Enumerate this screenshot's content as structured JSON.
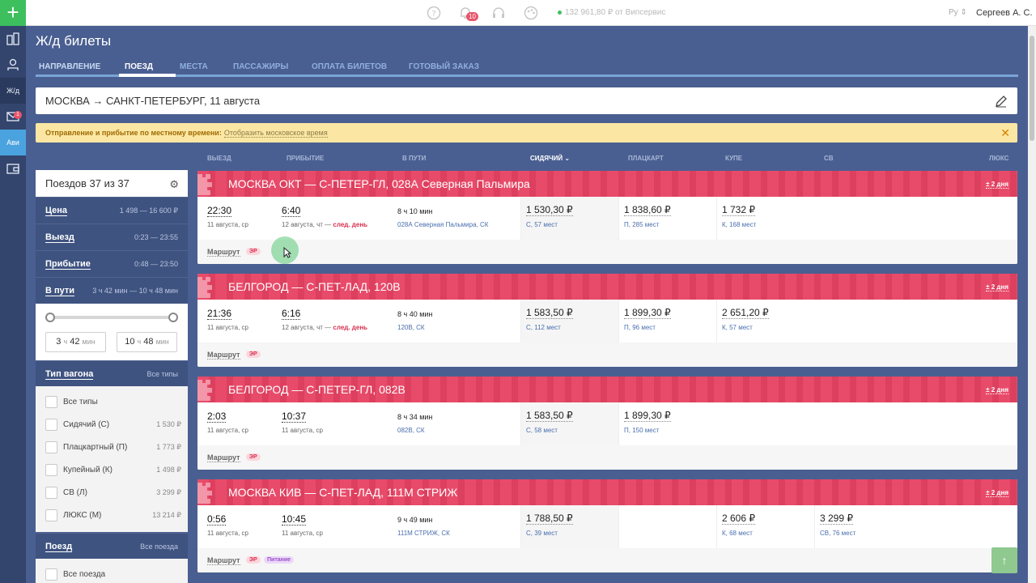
{
  "topbar": {
    "notifications_count": "10",
    "balance": "132 961,80 ₽ от Випсервис",
    "language": "Ру",
    "user": "Сергеев А. С."
  },
  "rail": {
    "rail_label": "Ж/д",
    "avia_label": "Ави",
    "mail_badge": "1"
  },
  "page": {
    "title": "Ж/д билеты",
    "tabs": [
      "НАПРАВЛЕНИЕ",
      "ПОЕЗД",
      "МЕСТА",
      "ПАССАЖИРЫ",
      "ОПЛАТА БИЛЕТОВ",
      "ГОТОВЫЙ ЗАКАЗ"
    ],
    "active_tab_index": 1,
    "route": "МОСКВА → САНКТ-ПЕТЕРБУРГ, 11 августа",
    "notice_text": "Отправление и прибытие по местному времени:",
    "notice_link": "Отобразить московское время"
  },
  "columns": {
    "depart": "ВЫЕЗД",
    "arrive": "ПРИБЫТИЕ",
    "travel": "В ПУТИ",
    "sitting": "СИДЯЧИЙ ⌄",
    "platzkart": "ПЛАЦКАРТ",
    "kupe": "КУПЕ",
    "sv": "СВ",
    "lux": "ЛЮКС"
  },
  "sidebar": {
    "count_text": "Поездов 37 из 37",
    "filters": [
      {
        "label": "Цена",
        "value": "1 498 — 16 600 ₽"
      },
      {
        "label": "Выезд",
        "value": "0:23 — 23:55"
      },
      {
        "label": "Прибытие",
        "value": "0:48 — 23:50"
      },
      {
        "label": "В пути",
        "value": "3 ч 42 мин — 10 ч 48 мин"
      }
    ],
    "dur_min": {
      "h": "3",
      "m": "42"
    },
    "dur_max": {
      "h": "10",
      "m": "48"
    },
    "unit_h": "ч",
    "unit_m": "мин",
    "wagon_type_label": "Тип вагона",
    "wagon_type_all": "Все типы",
    "wagon_types": [
      {
        "label": "Все типы",
        "price": ""
      },
      {
        "label": "Сидячий (С)",
        "price": "1 530 ₽"
      },
      {
        "label": "Плацкартный (П)",
        "price": "1 773 ₽"
      },
      {
        "label": "Купейный (К)",
        "price": "1 498 ₽"
      },
      {
        "label": "СВ (Л)",
        "price": "3 299 ₽"
      },
      {
        "label": "ЛЮКС (М)",
        "price": "13 214 ₽"
      }
    ],
    "train_label": "Поезд",
    "train_all": "Все поезда",
    "train_first": "Все поезда"
  },
  "card_common": {
    "days": "± 2 дня",
    "route_link": "Маршрут",
    "er": "ЭР",
    "food": "Питание",
    "next_day": "след. день"
  },
  "trains": [
    {
      "name": "МОСКВА ОКТ — С-ПЕТЕР-ГЛ, 028А Северная Пальмира",
      "dep_time": "22:30",
      "dep_date": "11 августа, ср",
      "arr_time": "6:40",
      "arr_date": "12 августа, чт —",
      "travel": "8 ч 10 мин",
      "train_no": "028А Северная Пальмира, СК",
      "sitting_price": "1 530,30 ₽",
      "sitting_seats": "С, 57 мест",
      "platz_price": "1 838,60 ₽",
      "platz_seats": "П, 285 мест",
      "kupe_price": "1 732 ₽",
      "kupe_seats": "К, 168 мест"
    },
    {
      "name": "БЕЛГОРОД — С-ПЕТ-ЛАД, 120В",
      "dep_time": "21:36",
      "dep_date": "11 августа, ср",
      "arr_time": "6:16",
      "arr_date": "12 августа, чт —",
      "travel": "8 ч 40 мин",
      "train_no": "120В, СК",
      "sitting_price": "1 583,50 ₽",
      "sitting_seats": "С, 112 мест",
      "platz_price": "1 899,30 ₽",
      "platz_seats": "П, 96 мест",
      "kupe_price": "2 651,20 ₽",
      "kupe_seats": "К, 57 мест"
    },
    {
      "name": "БЕЛГОРОД — С-ПЕТЕР-ГЛ, 082В",
      "dep_time": "2:03",
      "dep_date": "11 августа, ср",
      "arr_time": "10:37",
      "arr_date": "11 августа, ср",
      "travel": "8 ч 34 мин",
      "train_no": "082В, СК",
      "sitting_price": "1 583,50 ₽",
      "sitting_seats": "С, 58 мест",
      "platz_price": "1 899,30 ₽",
      "platz_seats": "П, 150 мест"
    },
    {
      "name": "МОСКВА КИВ — С-ПЕТ-ЛАД, 111М СТРИЖ",
      "dep_time": "0:56",
      "dep_date": "11 августа, ср",
      "arr_time": "10:45",
      "arr_date": "11 августа, ср",
      "travel": "9 ч 49 мин",
      "train_no": "111М СТРИЖ, СК",
      "sitting_price": "1 788,50 ₽",
      "sitting_seats": "С, 39 мест",
      "kupe_price": "2 606 ₽",
      "kupe_seats": "К, 68 мест",
      "sv_price": "3 299 ₽",
      "sv_seats": "СВ, 76 мест"
    }
  ]
}
